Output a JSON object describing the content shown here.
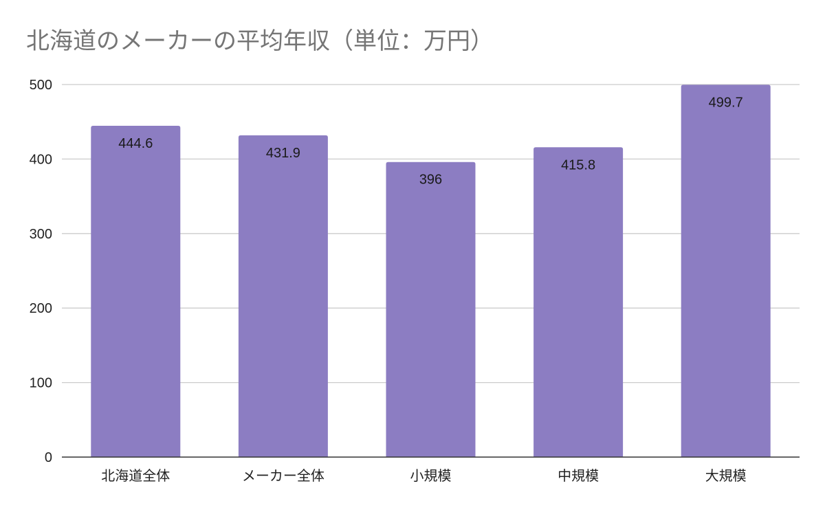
{
  "chart_data": {
    "type": "bar",
    "title": "北海道のメーカーの平均年収（単位：万円）",
    "categories": [
      "北海道全体",
      "メーカー全体",
      "小規模",
      "中規模",
      "大規模"
    ],
    "values": [
      444.6,
      431.9,
      396,
      415.8,
      499.7
    ],
    "data_labels": [
      "444.6",
      "431.9",
      "396",
      "415.8",
      "499.7"
    ],
    "yticks": [
      "0",
      "100",
      "200",
      "300",
      "400",
      "500"
    ],
    "ylim": [
      0,
      500
    ],
    "grid": true,
    "legend": "none",
    "bar_color": "#8c7dc2",
    "grid_color": "#cccccc",
    "axis_color": "#333333"
  }
}
